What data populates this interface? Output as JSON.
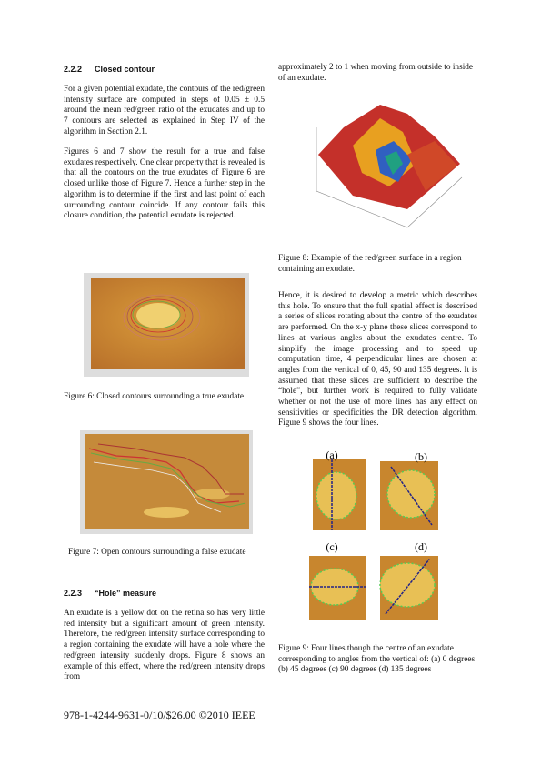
{
  "left": {
    "section_222": {
      "number": "2.2.2",
      "title": "Closed contour",
      "paragraphs": [
        "For a given potential exudate, the contours of the red/green intensity surface are computed in steps of 0.05 ± 0.5 around the mean red/green ratio of the exudates and up to 7 contours are selected as explained in Step IV of the algorithm in Section 2.1.",
        "Figures 6 and 7 show the result for a true and false exudates respectively. One clear property that is revealed is that all the contours on the true exudates of Figure 6 are closed unlike those of Figure 7. Hence a further step in the algorithm is to determine if the first and last point of each surrounding contour coincide. If any contour fails this closure condition, the potential exudate is rejected."
      ]
    },
    "figure6": {
      "caption": "Figure 6: Closed contours surrounding a true exudate"
    },
    "figure7": {
      "caption": "Figure 7: Open contours surrounding a false exudate"
    },
    "section_223": {
      "number": "2.2.3",
      "title": "“Hole” measure",
      "paragraphs": [
        "An exudate is a yellow dot on the retina so has very little red intensity but a significant amount of green intensity. Therefore, the red/green intensity surface corresponding to a region containing the exudate will have a hole where the red/green intensity suddenly drops. Figure 8 shows an example of this effect, where the red/green intensity drops from"
      ]
    }
  },
  "right": {
    "paragraph_continued": "approximately 2 to 1 when moving from outside to inside of an exudate.",
    "figure8": {
      "caption": "Figure 8: Example of the red/green surface in a region containing an exudate."
    },
    "paragraph": "Hence, it is desired to develop a metric which describes this hole. To ensure that the full spatial effect is described a series of slices rotating about the centre of the exudates are performed. On the x-y plane these slices correspond to lines at various angles about the exudates centre. To simplify the image processing and to speed up computation time, 4 perpendicular lines are chosen at angles from the vertical of 0, 45, 90 and 135 degrees. It is assumed that these slices are sufficient to describe the “hole”, but further work is required to fully validate whether or not the use of more lines has any effect on sensitivities or specificities the DR detection algorithm. Figure 9 shows the four lines.",
    "figure9": {
      "panels": [
        "(a)",
        "(b)",
        "(c)",
        "(d)"
      ],
      "caption": "Figure 9: Four lines though the centre of an exudate corresponding to angles from the vertical of: (a) 0 degrees (b) 45 degrees (c) 90 degrees (d) 135 degrees"
    }
  },
  "footer": "978-1-4244-9631-0/10/$26.00 ©2010 IEEE"
}
